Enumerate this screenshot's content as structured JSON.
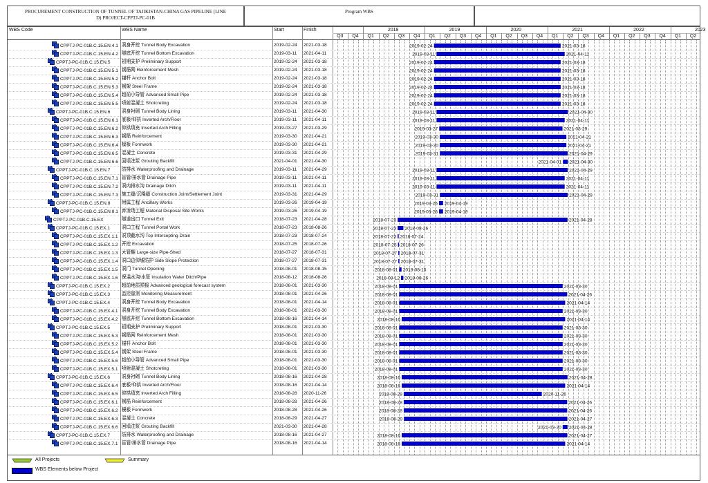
{
  "header": {
    "title_line1": "PROCUREMENT CONSTRUCTION OF TUNNEL OF TAJIKISTAN-CHINA GAS PIPELINE (LINE",
    "title_line2": "D) PROJECT-CPPTJ-PC-01B",
    "program": "Program WBS"
  },
  "columns": {
    "code": "WBS Code",
    "name": "WBS Name",
    "start": "Start",
    "finish": "Finish"
  },
  "timeline": {
    "years": [
      "2018",
      "2019",
      "2020",
      "2021",
      "2022",
      "2023"
    ],
    "quarters": [
      "Q3",
      "Q4",
      "Q1",
      "Q2",
      "Q3",
      "Q4",
      "Q1",
      "Q2",
      "Q3",
      "Q4",
      "Q1",
      "Q2",
      "Q3",
      "Q4",
      "Q1",
      "Q2",
      "Q3",
      "Q4",
      "Q1",
      "Q2",
      "Q3",
      "Q4",
      "Q1",
      "Q2"
    ],
    "range_start": "2017-07-01",
    "range_end": "2023-07-01"
  },
  "chart_data": {
    "type": "gantt",
    "bar_color": "#0000cc",
    "rows": [
      {
        "code": "CPPTJ-PC-01B.C.15.EN.4.1",
        "name": "洞身开挖 Tunnel Body Excavation",
        "start": "2019-02-24",
        "finish": "2021-03-18",
        "level": 5
      },
      {
        "code": "CPPTJ-PC-01B.C.15.EN.4.2",
        "name": "隧底开挖 Tunnel Bottom Excavation",
        "start": "2019-03-11",
        "finish": "2021-04-11",
        "level": 5
      },
      {
        "code": "CPPTJ-PC-01B.C.15.EN.5",
        "name": "初期支护 Preliminary Support",
        "start": "2019-02-24",
        "finish": "2021-03-18",
        "level": 4
      },
      {
        "code": "CPPTJ-PC-01B.C.15.EN.5.1",
        "name": "钢筋网 Reinforcement Mesh",
        "start": "2019-02-24",
        "finish": "2021-03-18",
        "level": 5
      },
      {
        "code": "CPPTJ-PC-01B.C.15.EN.5.2",
        "name": "锚杆 Anchor Bolt",
        "start": "2019-02-24",
        "finish": "2021-03-18",
        "level": 5
      },
      {
        "code": "CPPTJ-PC-01B.C.15.EN.5.3",
        "name": "钢架 Steel Frame",
        "start": "2019-02-24",
        "finish": "2021-03-18",
        "level": 5
      },
      {
        "code": "CPPTJ-PC-01B.C.15.EN.5.4",
        "name": "超前小导管 Advanced Small Pipe",
        "start": "2019-02-24",
        "finish": "2021-03-18",
        "level": 5
      },
      {
        "code": "CPPTJ-PC-01B.C.15.EN.5.5",
        "name": "喷射混凝土 Shotcreting",
        "start": "2019-02-24",
        "finish": "2021-03-18",
        "level": 5
      },
      {
        "code": "CPPTJ-PC-01B.C.15.EN.6",
        "name": "洞身衬砌 Tunnel Body Lining",
        "start": "2019-03-11",
        "finish": "2021-04-30",
        "level": 4
      },
      {
        "code": "CPPTJ-PC-01B.C.15.EN.6.1",
        "name": "底板/仰拱 Inverted Arch/Floor",
        "start": "2019-03-11",
        "finish": "2021-04-11",
        "level": 5
      },
      {
        "code": "CPPTJ-PC-01B.C.15.EN.6.2",
        "name": "仰拱填充 Inverted Arch Filling",
        "start": "2019-03-27",
        "finish": "2021-03-29",
        "level": 5
      },
      {
        "code": "CPPTJ-PC-01B.C.15.EN.6.3",
        "name": "钢筋 Reinforcement",
        "start": "2019-03-30",
        "finish": "2021-04-21",
        "level": 5
      },
      {
        "code": "CPPTJ-PC-01B.C.15.EN.6.4",
        "name": "模板 Formwork",
        "start": "2019-03-30",
        "finish": "2021-04-21",
        "level": 5
      },
      {
        "code": "CPPTJ-PC-01B.C.15.EN.6.5",
        "name": "混凝土 Concrete",
        "start": "2019-03-31",
        "finish": "2021-04-29",
        "level": 5
      },
      {
        "code": "CPPTJ-PC-01B.C.15.EN.6.6",
        "name": "回填注浆 Grouting Backfill",
        "start": "2021-04-01",
        "finish": "2021-04-30",
        "level": 5
      },
      {
        "code": "CPPTJ-PC-01B.C.15.EN.7",
        "name": "防排水 Waterproofing and Drainage",
        "start": "2019-03-11",
        "finish": "2021-04-29",
        "level": 4
      },
      {
        "code": "CPPTJ-PC-01B.C.15.EN.7.1",
        "name": "盲管/排水管 Drainage Pipe",
        "start": "2019-03-11",
        "finish": "2021-04-11",
        "level": 5
      },
      {
        "code": "CPPTJ-PC-01B.C.15.EN.7.2",
        "name": "洞内排水沟 Drainage Ditch",
        "start": "2019-03-11",
        "finish": "2021-04-11",
        "level": 5
      },
      {
        "code": "CPPTJ-PC-01B.C.15.EN.7.3",
        "name": "施工缝/沉降缝 Construction Joint/Settlement Joint",
        "start": "2019-03-31",
        "finish": "2021-04-29",
        "level": 5
      },
      {
        "code": "CPPTJ-PC-01B.C.15.EN.8",
        "name": "附属工程 Ancillary Works",
        "start": "2019-03-26",
        "finish": "2019-04-19",
        "level": 4
      },
      {
        "code": "CPPTJ-PC-01B.C.15.EN.8.1",
        "name": "弃渣场工程 Material Disposal Site Works",
        "start": "2019-03-26",
        "finish": "2019-04-19",
        "level": 5
      },
      {
        "code": "CPPTJ-PC-01B.C.15.EX",
        "name": "隧道出口 Tunnel Exit",
        "start": "2018-07-23",
        "finish": "2021-04-28",
        "level": 3
      },
      {
        "code": "CPPTJ-PC-01B.C.15.EX.1",
        "name": "洞口工程 Tunnel Portal Work",
        "start": "2018-07-23",
        "finish": "2018-08-26",
        "level": 4
      },
      {
        "code": "CPPTJ-PC-01B.C.15.EX.1.1",
        "name": "洞顶截水沟 Top Intercepting Drain",
        "start": "2018-07-23",
        "finish": "2018-07-24",
        "level": 5
      },
      {
        "code": "CPPTJ-PC-01B.C.15.EX.1.2",
        "name": "开挖 Excavation",
        "start": "2018-07-25",
        "finish": "2018-07-26",
        "level": 5
      },
      {
        "code": "CPPTJ-PC-01B.C.15.EX.1.3",
        "name": "大管棚 Large-size Pipe-Shed",
        "start": "2018-07-27",
        "finish": "2018-07-31",
        "level": 5
      },
      {
        "code": "CPPTJ-PC-01B.C.15.EX.1.4",
        "name": "洞口边仰坡防护 Side Slope Protection",
        "start": "2018-07-27",
        "finish": "2018-07-31",
        "level": 5
      },
      {
        "code": "CPPTJ-PC-01B.C.15.EX.1.5",
        "name": "洞门 Tunnel Opening",
        "start": "2018-08-01",
        "finish": "2018-08-15",
        "level": 5
      },
      {
        "code": "CPPTJ-PC-01B.C.15.EX.1.6",
        "name": "保温水沟/水管 Insulation Water Ditch/Pipe",
        "start": "2018-08-12",
        "finish": "2018-08-26",
        "level": 5
      },
      {
        "code": "CPPTJ-PC-01B.C.15.EX.2",
        "name": "超前地质预报 Advanced geological forecast system",
        "start": "2018-08-01",
        "finish": "2021-03-30",
        "level": 4
      },
      {
        "code": "CPPTJ-PC-01B.C.15.EX.3",
        "name": "监控量测 Monitoring Measurement",
        "start": "2018-08-01",
        "finish": "2021-04-26",
        "level": 4
      },
      {
        "code": "CPPTJ-PC-01B.C.15.EX.4",
        "name": "洞身开挖 Tunnel Body Excavation",
        "start": "2018-08-01",
        "finish": "2021-04-14",
        "level": 4
      },
      {
        "code": "CPPTJ-PC-01B.C.15.EX.4.1",
        "name": "洞身开挖 Tunnel Body Excavation",
        "start": "2018-08-01",
        "finish": "2021-03-30",
        "level": 5
      },
      {
        "code": "CPPTJ-PC-01B.C.15.EX.4.2",
        "name": "隧底开挖 Tunnel Bottom Excavation",
        "start": "2018-08-16",
        "finish": "2021-04-14",
        "level": 5
      },
      {
        "code": "CPPTJ-PC-01B.C.15.EX.5",
        "name": "初期支护 Preliminary Support",
        "start": "2018-08-01",
        "finish": "2021-03-30",
        "level": 4
      },
      {
        "code": "CPPTJ-PC-01B.C.15.EX.5.3",
        "name": "钢筋网 Reinforcement Mesh",
        "start": "2018-08-01",
        "finish": "2021-03-30",
        "level": 5
      },
      {
        "code": "CPPTJ-PC-01B.C.15.EX.5.2",
        "name": "锚杆 Anchor Bolt",
        "start": "2018-08-01",
        "finish": "2021-03-30",
        "level": 5
      },
      {
        "code": "CPPTJ-PC-01B.C.15.EX.5.4",
        "name": "钢架 Steel Frame",
        "start": "2018-08-01",
        "finish": "2021-03-30",
        "level": 5
      },
      {
        "code": "CPPTJ-PC-01B.C.15.EX.5.6",
        "name": "超前小导管 Advanced Small Pipe",
        "start": "2018-08-01",
        "finish": "2021-03-30",
        "level": 5
      },
      {
        "code": "CPPTJ-PC-01B.C.15.EX.5.1",
        "name": "喷射混凝土 Shotcreting",
        "start": "2018-08-01",
        "finish": "2021-03-30",
        "level": 5
      },
      {
        "code": "CPPTJ-PC-01B.C.15.EX.6",
        "name": "洞身衬砌 Tunnel Body Lining",
        "start": "2018-08-16",
        "finish": "2021-04-28",
        "level": 4
      },
      {
        "code": "CPPTJ-PC-01B.C.15.EX.6.4",
        "name": "底板/仰拱 Inverted Arch/Floor",
        "start": "2018-08-16",
        "finish": "2021-04-14",
        "level": 5
      },
      {
        "code": "CPPTJ-PC-01B.C.15.EX.6.5",
        "name": "仰拱填充 Inverted Arch Filling",
        "start": "2018-08-28",
        "finish": "2020-11-26",
        "level": 5
      },
      {
        "code": "CPPTJ-PC-01B.C.15.EX.6.1",
        "name": "钢筋 Reinforcement",
        "start": "2018-08-28",
        "finish": "2021-04-26",
        "level": 5
      },
      {
        "code": "CPPTJ-PC-01B.C.15.EX.6.2",
        "name": "模板 Formwork",
        "start": "2018-08-28",
        "finish": "2021-04-26",
        "level": 5
      },
      {
        "code": "CPPTJ-PC-01B.C.15.EX.6.3",
        "name": "混凝土 Concrete",
        "start": "2018-08-29",
        "finish": "2021-04-27",
        "level": 5
      },
      {
        "code": "CPPTJ-PC-01B.C.15.EX.6.6",
        "name": "回填注浆 Grouting Backfill",
        "start": "2021-03-30",
        "finish": "2021-04-28",
        "level": 5
      },
      {
        "code": "CPPTJ-PC-01B.C.15.EX.7",
        "name": "防排水 Waterproofing and Drainage",
        "start": "2018-08-16",
        "finish": "2021-04-27",
        "level": 4
      },
      {
        "code": "CPPTJ-PC-01B.C.15.EX.7.1",
        "name": "盲管/排水管 Drainage Pipe",
        "start": "2018-08-16",
        "finish": "2021-04-14",
        "level": 5
      }
    ]
  },
  "legend": {
    "all_projects": "All Projects",
    "summary": "Summary",
    "wbs_elements": "WBS Elements below Project"
  }
}
